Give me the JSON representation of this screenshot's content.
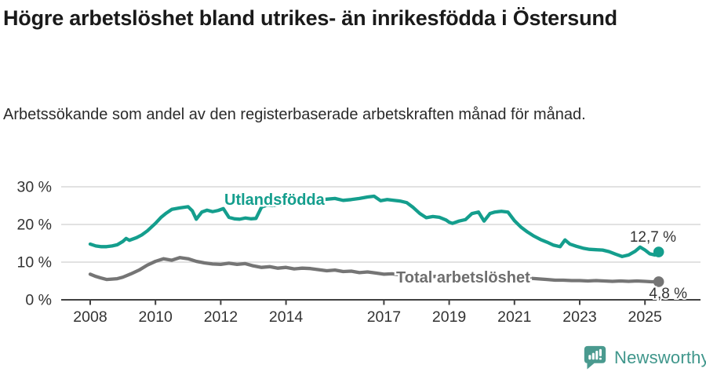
{
  "header": {
    "title": "Högre arbetslöshet bland utrikes- än inrikesfödda i Östersund",
    "subtitle": "Arbetssökande som andel av den registerbaserade arbetskraften månad för månad."
  },
  "footer": {
    "brand": "Newsworthy",
    "brand_color": "#3f968b",
    "logo_icon": "newsworthy-bubble-chart-icon"
  },
  "chart_data": {
    "type": "line",
    "title": "Högre arbetslöshet bland utrikes- än inrikesfödda i Östersund",
    "subtitle": "Arbetssökande som andel av den registerbaserade arbetskraften månad för månad.",
    "xlabel": "",
    "ylabel": "",
    "xlim": [
      2007.8,
      2025.7
    ],
    "ylim": [
      0,
      32
    ],
    "grid": "horizontal",
    "legend_position": "inline-labels",
    "x_ticks": [
      2008,
      2010,
      2012,
      2014,
      2017,
      2019,
      2021,
      2023,
      2025
    ],
    "x_tick_labels": [
      "2008",
      "2010",
      "2012",
      "2014",
      "2017",
      "2019",
      "2021",
      "2023",
      "2025"
    ],
    "y_ticks": [
      0,
      10,
      20,
      30
    ],
    "y_tick_labels": [
      "0 %",
      "10 %",
      "20 %",
      "30 %"
    ],
    "series": [
      {
        "id": "utlandsfodda",
        "name": "Utlandsfödda",
        "color": "#149e8d",
        "label_color": "#149e8d",
        "end_value": 12.7,
        "end_label": "12,7 %",
        "points": [
          [
            2008.0,
            14.8
          ],
          [
            2008.17,
            14.3
          ],
          [
            2008.33,
            14.1
          ],
          [
            2008.5,
            14.1
          ],
          [
            2008.67,
            14.3
          ],
          [
            2008.83,
            14.6
          ],
          [
            2009.0,
            15.5
          ],
          [
            2009.1,
            16.3
          ],
          [
            2009.2,
            15.8
          ],
          [
            2009.42,
            16.5
          ],
          [
            2009.58,
            17.2
          ],
          [
            2009.75,
            18.3
          ],
          [
            2010.0,
            20.3
          ],
          [
            2010.17,
            21.9
          ],
          [
            2010.33,
            23.0
          ],
          [
            2010.5,
            24.0
          ],
          [
            2010.75,
            24.4
          ],
          [
            2011.0,
            24.7
          ],
          [
            2011.13,
            23.6
          ],
          [
            2011.25,
            21.4
          ],
          [
            2011.42,
            23.3
          ],
          [
            2011.58,
            23.8
          ],
          [
            2011.75,
            23.4
          ],
          [
            2011.92,
            23.7
          ],
          [
            2012.08,
            24.2
          ],
          [
            2012.25,
            21.9
          ],
          [
            2012.42,
            21.5
          ],
          [
            2012.58,
            21.4
          ],
          [
            2012.75,
            21.7
          ],
          [
            2012.92,
            21.5
          ],
          [
            2013.08,
            21.6
          ],
          [
            2013.25,
            24.6
          ],
          [
            2013.42,
            25.1
          ],
          [
            2013.58,
            25.0
          ],
          [
            2013.75,
            25.2
          ],
          [
            2014.0,
            25.4
          ],
          [
            2014.25,
            25.6
          ],
          [
            2014.5,
            25.9
          ],
          [
            2014.75,
            26.1
          ],
          [
            2015.0,
            26.4
          ],
          [
            2015.25,
            26.7
          ],
          [
            2015.5,
            26.9
          ],
          [
            2015.75,
            26.4
          ],
          [
            2016.0,
            26.6
          ],
          [
            2016.25,
            26.9
          ],
          [
            2016.5,
            27.3
          ],
          [
            2016.7,
            27.5
          ],
          [
            2016.9,
            26.3
          ],
          [
            2017.1,
            26.6
          ],
          [
            2017.3,
            26.4
          ],
          [
            2017.5,
            26.2
          ],
          [
            2017.7,
            25.8
          ],
          [
            2017.9,
            24.5
          ],
          [
            2018.1,
            22.9
          ],
          [
            2018.3,
            21.8
          ],
          [
            2018.5,
            22.1
          ],
          [
            2018.7,
            21.9
          ],
          [
            2018.9,
            21.2
          ],
          [
            2019.0,
            20.6
          ],
          [
            2019.1,
            20.3
          ],
          [
            2019.3,
            20.9
          ],
          [
            2019.5,
            21.3
          ],
          [
            2019.7,
            22.9
          ],
          [
            2019.9,
            23.3
          ],
          [
            2020.07,
            20.9
          ],
          [
            2020.25,
            22.9
          ],
          [
            2020.4,
            23.3
          ],
          [
            2020.6,
            23.5
          ],
          [
            2020.8,
            23.3
          ],
          [
            2021.0,
            21.0
          ],
          [
            2021.2,
            19.3
          ],
          [
            2021.4,
            18.0
          ],
          [
            2021.6,
            16.9
          ],
          [
            2021.8,
            16.0
          ],
          [
            2022.0,
            15.3
          ],
          [
            2022.2,
            14.5
          ],
          [
            2022.4,
            14.1
          ],
          [
            2022.55,
            15.9
          ],
          [
            2022.7,
            14.8
          ],
          [
            2022.9,
            14.2
          ],
          [
            2023.1,
            13.7
          ],
          [
            2023.3,
            13.4
          ],
          [
            2023.5,
            13.3
          ],
          [
            2023.7,
            13.2
          ],
          [
            2023.9,
            12.8
          ],
          [
            2024.1,
            12.1
          ],
          [
            2024.3,
            11.5
          ],
          [
            2024.5,
            11.9
          ],
          [
            2024.7,
            12.9
          ],
          [
            2024.85,
            14.0
          ],
          [
            2025.0,
            13.2
          ],
          [
            2025.15,
            12.2
          ],
          [
            2025.3,
            11.9
          ],
          [
            2025.42,
            12.7
          ]
        ]
      },
      {
        "id": "total-arbetsloshet",
        "name": "Total arbetslöshet",
        "color": "#757575",
        "label_color": "#6e6e6e",
        "end_value": 4.8,
        "end_label": "4,8 %",
        "points": [
          [
            2008.0,
            6.8
          ],
          [
            2008.17,
            6.2
          ],
          [
            2008.33,
            5.8
          ],
          [
            2008.5,
            5.4
          ],
          [
            2008.67,
            5.5
          ],
          [
            2008.83,
            5.6
          ],
          [
            2009.0,
            6.0
          ],
          [
            2009.25,
            6.9
          ],
          [
            2009.5,
            7.9
          ],
          [
            2009.75,
            9.2
          ],
          [
            2010.0,
            10.2
          ],
          [
            2010.25,
            10.9
          ],
          [
            2010.5,
            10.5
          ],
          [
            2010.75,
            11.2
          ],
          [
            2011.0,
            10.9
          ],
          [
            2011.25,
            10.2
          ],
          [
            2011.5,
            9.8
          ],
          [
            2011.75,
            9.5
          ],
          [
            2012.0,
            9.4
          ],
          [
            2012.25,
            9.7
          ],
          [
            2012.5,
            9.4
          ],
          [
            2012.75,
            9.6
          ],
          [
            2013.0,
            9.0
          ],
          [
            2013.25,
            8.6
          ],
          [
            2013.5,
            8.8
          ],
          [
            2013.75,
            8.4
          ],
          [
            2014.0,
            8.6
          ],
          [
            2014.25,
            8.2
          ],
          [
            2014.5,
            8.4
          ],
          [
            2014.75,
            8.3
          ],
          [
            2015.0,
            8.0
          ],
          [
            2015.25,
            7.7
          ],
          [
            2015.5,
            7.9
          ],
          [
            2015.75,
            7.5
          ],
          [
            2016.0,
            7.6
          ],
          [
            2016.25,
            7.2
          ],
          [
            2016.5,
            7.4
          ],
          [
            2016.75,
            7.1
          ],
          [
            2017.0,
            6.8
          ],
          [
            2017.25,
            6.9
          ],
          [
            2017.5,
            6.6
          ],
          [
            2017.75,
            6.5
          ],
          [
            2018.0,
            6.4
          ],
          [
            2018.5,
            6.2
          ],
          [
            2019.0,
            6.1
          ],
          [
            2019.5,
            6.0
          ],
          [
            2020.0,
            6.3
          ],
          [
            2020.5,
            6.4
          ],
          [
            2021.0,
            6.0
          ],
          [
            2021.5,
            5.7
          ],
          [
            2022.0,
            5.4
          ],
          [
            2022.25,
            5.2
          ],
          [
            2022.5,
            5.2
          ],
          [
            2022.75,
            5.1
          ],
          [
            2023.0,
            5.1
          ],
          [
            2023.25,
            5.0
          ],
          [
            2023.5,
            5.1
          ],
          [
            2023.75,
            5.0
          ],
          [
            2024.0,
            4.9
          ],
          [
            2024.25,
            5.0
          ],
          [
            2024.5,
            4.9
          ],
          [
            2024.75,
            5.0
          ],
          [
            2025.0,
            4.9
          ],
          [
            2025.2,
            4.8
          ],
          [
            2025.42,
            4.8
          ]
        ]
      }
    ]
  }
}
